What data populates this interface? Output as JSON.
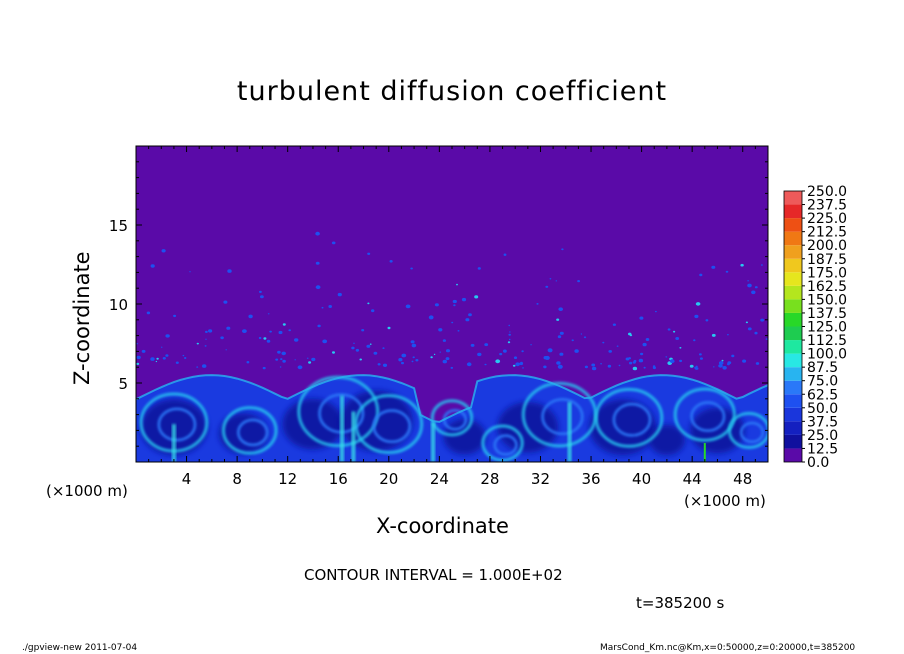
{
  "chart_data": {
    "type": "heatmap",
    "title": "turbulent diffusion coefficient",
    "xlabel": "X-coordinate",
    "ylabel": "Z-coordinate",
    "x_unit": "(×1000 m)",
    "y_unit": "(×1000 m)",
    "xlim": [
      0,
      50
    ],
    "ylim": [
      0,
      20
    ],
    "x_ticks": [
      4,
      8,
      12,
      16,
      20,
      24,
      28,
      32,
      36,
      40,
      44,
      48
    ],
    "y_ticks": [
      5,
      10,
      15
    ],
    "colorbar": {
      "levels": [
        "0.0",
        "12.5",
        "25.0",
        "37.5",
        "50.0",
        "62.5",
        "75.0",
        "87.5",
        "100.0",
        "112.5",
        "125.0",
        "137.5",
        "150.0",
        "162.5",
        "175.0",
        "187.5",
        "200.0",
        "212.5",
        "225.0",
        "237.5",
        "250.0"
      ],
      "colors": [
        "#5a0aa8",
        "#10109e",
        "#1420c0",
        "#1a36dc",
        "#1e50f0",
        "#2a78f8",
        "#28b4f0",
        "#28e8e4",
        "#1ee8a0",
        "#1ecc50",
        "#28d828",
        "#78e01e",
        "#b4e61e",
        "#e6e61e",
        "#f0c81e",
        "#f0a01e",
        "#f07814",
        "#ee5014",
        "#e62828",
        "#ee5a5a"
      ]
    },
    "field_description_values": {
      "background_level": 0.0,
      "boundary_layer_top_km": 5.5
    },
    "contour_interval": "CONTOUR INTERVAL = 1.000E+02",
    "time": "t=385200 s"
  },
  "footer": {
    "left": "./gpview-new   2011-07-04",
    "right": "MarsCond_Km.nc@Km,x=0:50000,z=0:20000,t=385200"
  }
}
